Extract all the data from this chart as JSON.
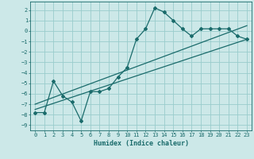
{
  "xlabel": "Humidex (Indice chaleur)",
  "bg_color": "#cce8e8",
  "grid_color": "#99cccc",
  "line_color": "#1a6b6b",
  "xlim": [
    -0.5,
    23.5
  ],
  "ylim": [
    -9.5,
    2.8
  ],
  "xticks": [
    0,
    1,
    2,
    3,
    4,
    5,
    6,
    7,
    8,
    9,
    10,
    11,
    12,
    13,
    14,
    15,
    16,
    17,
    18,
    19,
    20,
    21,
    22,
    23
  ],
  "yticks": [
    -9,
    -8,
    -7,
    -6,
    -5,
    -4,
    -3,
    -2,
    -1,
    0,
    1,
    2
  ],
  "curve1_x": [
    0,
    1,
    2,
    3,
    4,
    5,
    6,
    7,
    8,
    9,
    10,
    11,
    12,
    13,
    14,
    15,
    16,
    17,
    18,
    19,
    20,
    21,
    22,
    23
  ],
  "curve1_y": [
    -7.8,
    -7.8,
    -4.8,
    -6.2,
    -6.8,
    -8.6,
    -5.8,
    -5.8,
    -5.5,
    -4.4,
    -3.5,
    -0.8,
    0.2,
    2.2,
    1.8,
    1.0,
    0.2,
    -0.5,
    0.2,
    0.2,
    0.2,
    0.2,
    -0.5,
    -0.8
  ],
  "curve2_x": [
    0,
    23
  ],
  "curve2_y": [
    -7.5,
    -0.8
  ],
  "curve3_x": [
    0,
    23
  ],
  "curve3_y": [
    -7.0,
    0.5
  ]
}
